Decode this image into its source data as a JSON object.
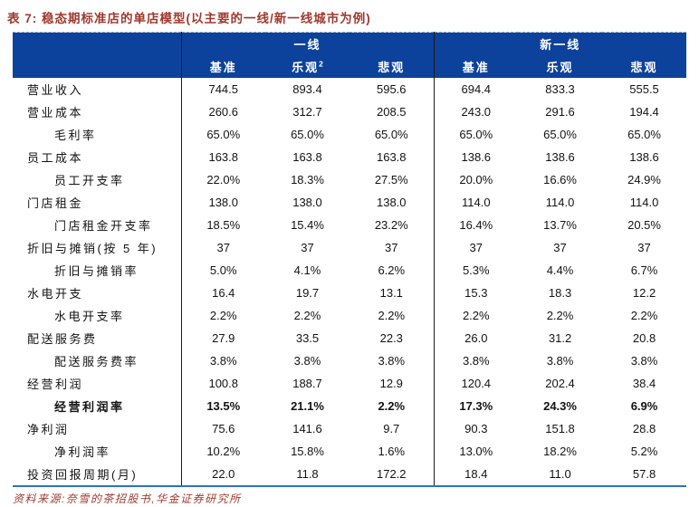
{
  "caption": {
    "prefix": "表 7:",
    "text": "稳态期标准店的单店模型(以主要的一线/新一线城市为例)"
  },
  "colors": {
    "header_bg": "#0C429B",
    "caption_red": "#9E392C",
    "source_red": "#9E392C",
    "divider": "#1a1a1a",
    "bottom_border": "#2E74B5"
  },
  "header": {
    "groups": [
      {
        "label": "一线"
      },
      {
        "label": "新一线"
      }
    ],
    "subcolumns": [
      {
        "label": "基准",
        "sup": ""
      },
      {
        "label": "乐观",
        "sup": "2"
      },
      {
        "label": "悲观",
        "sup": ""
      },
      {
        "label": "基准",
        "sup": ""
      },
      {
        "label": "乐观",
        "sup": ""
      },
      {
        "label": "悲观",
        "sup": ""
      }
    ]
  },
  "rows": [
    {
      "label": "营业收入",
      "indent": false,
      "bold": false,
      "values": [
        "744.5",
        "893.4",
        "595.6",
        "694.4",
        "833.3",
        "555.5"
      ]
    },
    {
      "label": "营业成本",
      "indent": false,
      "bold": false,
      "values": [
        "260.6",
        "312.7",
        "208.5",
        "243.0",
        "291.6",
        "194.4"
      ]
    },
    {
      "label": "毛利率",
      "indent": true,
      "bold": false,
      "values": [
        "65.0%",
        "65.0%",
        "65.0%",
        "65.0%",
        "65.0%",
        "65.0%"
      ]
    },
    {
      "label": "员工成本",
      "indent": false,
      "bold": false,
      "values": [
        "163.8",
        "163.8",
        "163.8",
        "138.6",
        "138.6",
        "138.6"
      ]
    },
    {
      "label": "员工开支率",
      "indent": true,
      "bold": false,
      "values": [
        "22.0%",
        "18.3%",
        "27.5%",
        "20.0%",
        "16.6%",
        "24.9%"
      ]
    },
    {
      "label": "门店租金",
      "indent": false,
      "bold": false,
      "values": [
        "138.0",
        "138.0",
        "138.0",
        "114.0",
        "114.0",
        "114.0"
      ]
    },
    {
      "label": "门店租金开支率",
      "indent": true,
      "bold": false,
      "values": [
        "18.5%",
        "15.4%",
        "23.2%",
        "16.4%",
        "13.7%",
        "20.5%"
      ]
    },
    {
      "label": "折旧与摊销(按 5 年)",
      "indent": false,
      "bold": false,
      "values": [
        "37",
        "37",
        "37",
        "37",
        "37",
        "37"
      ]
    },
    {
      "label": "折旧与摊销率",
      "indent": true,
      "bold": false,
      "values": [
        "5.0%",
        "4.1%",
        "6.2%",
        "5.3%",
        "4.4%",
        "6.7%"
      ]
    },
    {
      "label": "水电开支",
      "indent": false,
      "bold": false,
      "values": [
        "16.4",
        "19.7",
        "13.1",
        "15.3",
        "18.3",
        "12.2"
      ]
    },
    {
      "label": "水电开支率",
      "indent": true,
      "bold": false,
      "values": [
        "2.2%",
        "2.2%",
        "2.2%",
        "2.2%",
        "2.2%",
        "2.2%"
      ]
    },
    {
      "label": "配送服务费",
      "indent": false,
      "bold": false,
      "values": [
        "27.9",
        "33.5",
        "22.3",
        "26.0",
        "31.2",
        "20.8"
      ]
    },
    {
      "label": "配送服务费率",
      "indent": true,
      "bold": false,
      "values": [
        "3.8%",
        "3.8%",
        "3.8%",
        "3.8%",
        "3.8%",
        "3.8%"
      ]
    },
    {
      "label": "经营利润",
      "indent": false,
      "bold": false,
      "values": [
        "100.8",
        "188.7",
        "12.9",
        "120.4",
        "202.4",
        "38.4"
      ]
    },
    {
      "label": "经营利润率",
      "indent": true,
      "bold": true,
      "values": [
        "13.5%",
        "21.1%",
        "2.2%",
        "17.3%",
        "24.3%",
        "6.9%"
      ]
    },
    {
      "label": "净利润",
      "indent": false,
      "bold": false,
      "values": [
        "75.6",
        "141.6",
        "9.7",
        "90.3",
        "151.8",
        "28.8"
      ]
    },
    {
      "label": "净利润率",
      "indent": true,
      "bold": false,
      "values": [
        "10.2%",
        "15.8%",
        "1.6%",
        "13.0%",
        "18.2%",
        "5.2%"
      ]
    },
    {
      "label": "投资回报周期(月)",
      "indent": false,
      "bold": false,
      "values": [
        "22.0",
        "11.8",
        "172.2",
        "18.4",
        "11.0",
        "57.8"
      ]
    }
  ],
  "source": "资料来源:奈雪的茶招股书,华金证券研究所"
}
